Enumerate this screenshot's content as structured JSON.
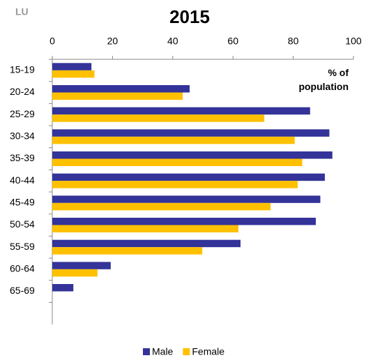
{
  "chart_data": {
    "type": "bar",
    "orientation": "horizontal",
    "corner_label": "LU",
    "title": "2015",
    "annotation": "% of population",
    "categories": [
      "15-19",
      "20-24",
      "25-29",
      "30-34",
      "35-39",
      "40-44",
      "45-49",
      "50-54",
      "55-59",
      "60-64",
      "65-69",
      null
    ],
    "series": [
      {
        "name": "Male",
        "color": "#333399",
        "values": [
          13,
          45.6,
          85.6,
          92,
          93,
          90.5,
          89,
          87.5,
          62.5,
          19.4,
          7,
          null
        ]
      },
      {
        "name": "Female",
        "color": "#FFC000",
        "values": [
          14,
          43.3,
          70.4,
          80.5,
          83,
          81.5,
          72.5,
          61.8,
          49.8,
          15,
          null,
          null
        ]
      }
    ],
    "xlim": [
      0,
      100
    ],
    "xticks": [
      0,
      20,
      40,
      60,
      80,
      100
    ],
    "legend": "bottom"
  }
}
